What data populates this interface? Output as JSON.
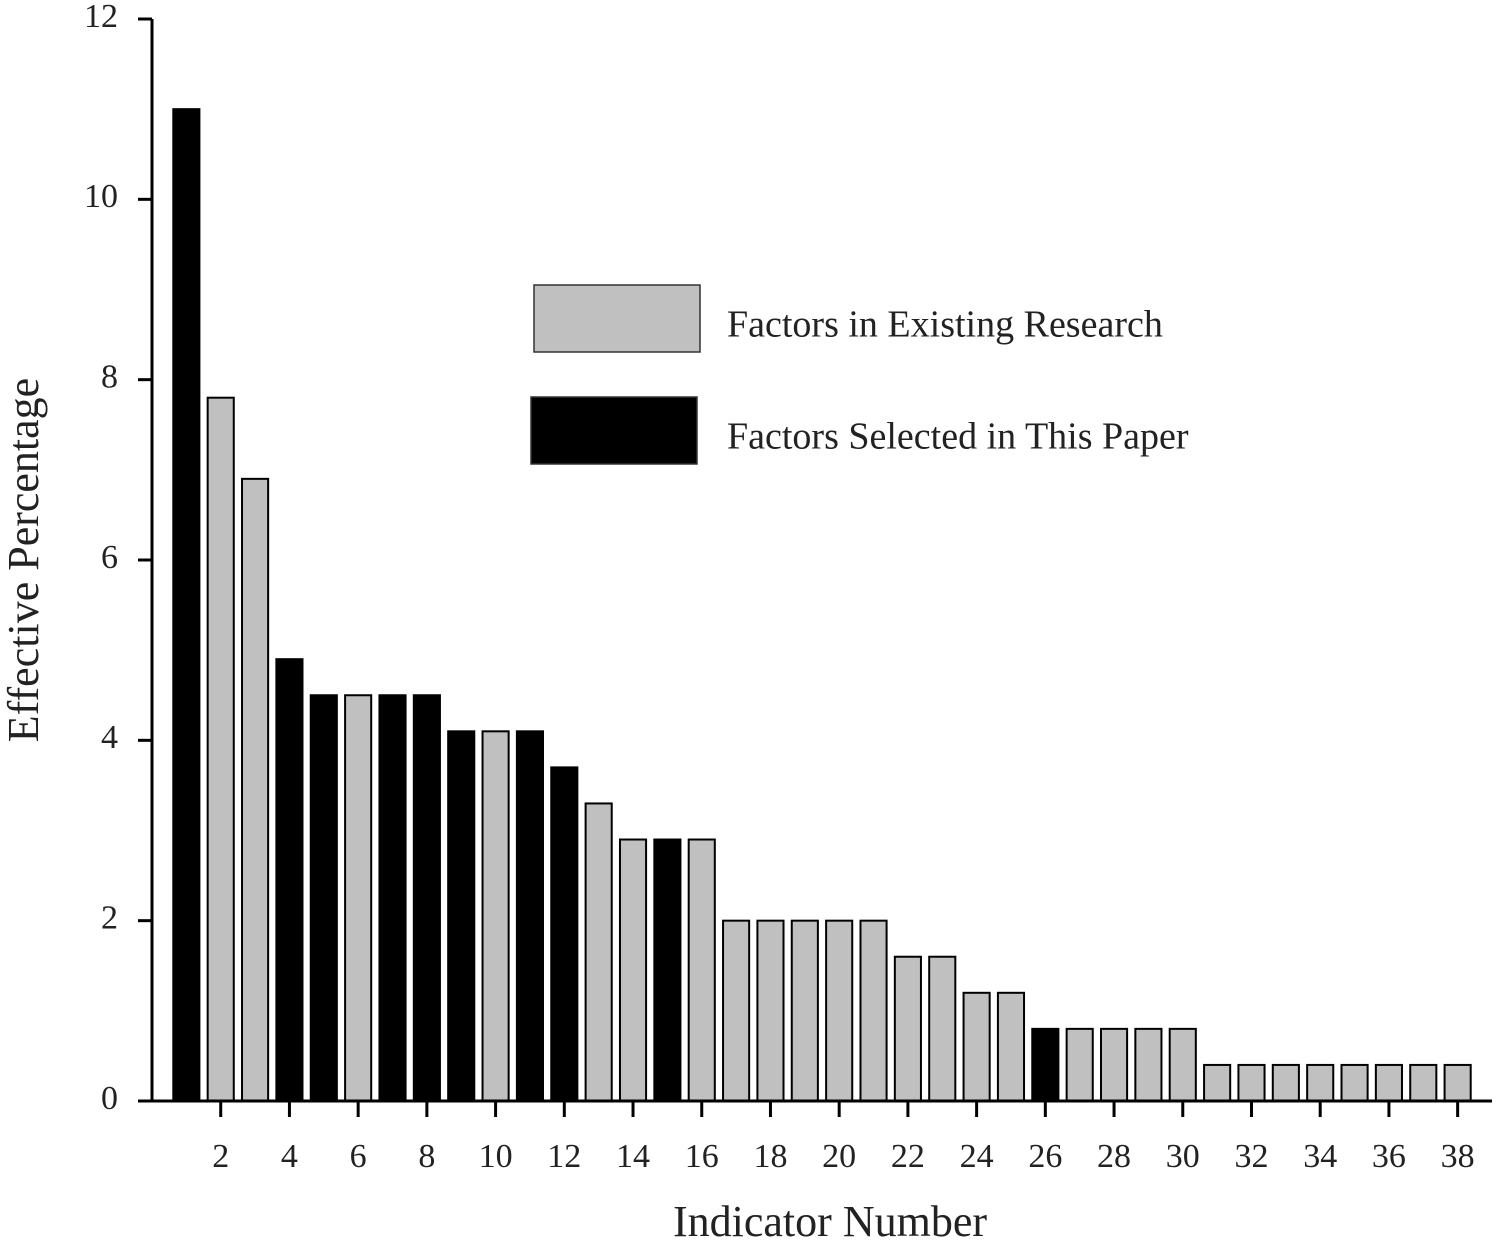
{
  "chart_data": {
    "type": "bar",
    "x_label": "Indicator Number",
    "y_label": "Effective Percentage",
    "x": [
      1,
      2,
      3,
      4,
      5,
      6,
      7,
      8,
      9,
      10,
      11,
      12,
      13,
      14,
      15,
      16,
      17,
      18,
      19,
      20,
      21,
      22,
      23,
      24,
      25,
      26,
      27,
      28,
      29,
      30,
      31,
      32,
      33,
      34,
      35,
      36,
      37,
      38
    ],
    "series": [
      {
        "name": "Factors in Existing Research",
        "color": "#c0c0c0",
        "values": [
          null,
          7.8,
          6.9,
          null,
          null,
          4.5,
          null,
          null,
          null,
          4.1,
          null,
          null,
          3.3,
          2.9,
          null,
          2.9,
          2,
          2,
          2,
          2,
          2,
          1.6,
          1.6,
          1.2,
          1.2,
          null,
          0.8,
          0.8,
          0.8,
          0.8,
          0.4,
          0.4,
          0.4,
          0.4,
          0.4,
          0.4,
          0.4,
          0.4
        ]
      },
      {
        "name": "Factors Selected in This Paper",
        "color": "#000000",
        "values": [
          11,
          null,
          null,
          4.9,
          4.5,
          null,
          4.5,
          4.5,
          4.1,
          null,
          4.1,
          3.7,
          null,
          null,
          2.9,
          null,
          null,
          null,
          null,
          null,
          null,
          null,
          null,
          null,
          null,
          0.8,
          null,
          null,
          null,
          null,
          null,
          null,
          null,
          null,
          null,
          null,
          null,
          null
        ]
      }
    ],
    "xlim": [
      0,
      39
    ],
    "xticks": [
      2,
      4,
      6,
      8,
      10,
      12,
      14,
      16,
      18,
      20,
      22,
      24,
      26,
      28,
      30,
      32,
      34,
      36,
      38
    ],
    "ylim": [
      0,
      12
    ],
    "yticks": [
      0,
      2,
      4,
      6,
      8,
      10,
      12
    ],
    "grid": false
  }
}
